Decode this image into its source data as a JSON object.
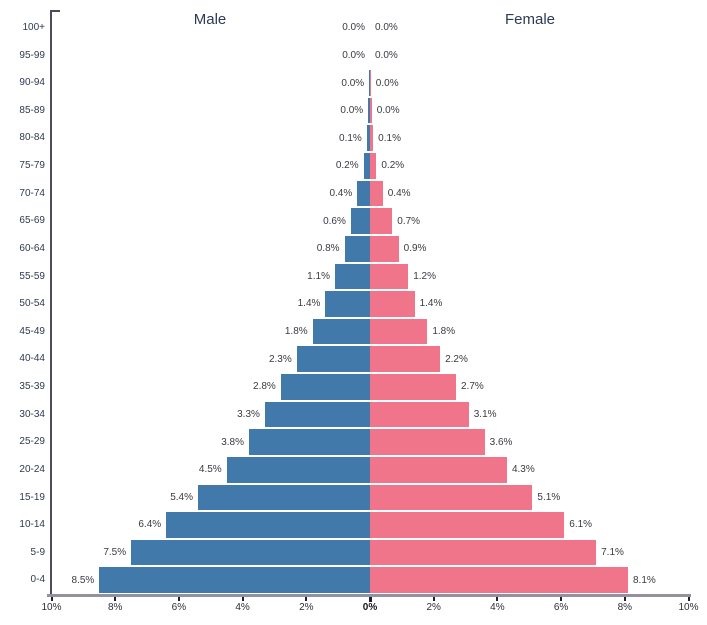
{
  "chart_data": {
    "type": "bar",
    "subtype": "population-pyramid",
    "orientation": "horizontal-mirrored",
    "grid": false,
    "categories": [
      "100+",
      "95-99",
      "90-94",
      "85-89",
      "80-84",
      "75-79",
      "70-74",
      "65-69",
      "60-64",
      "55-59",
      "50-54",
      "45-49",
      "40-44",
      "35-39",
      "30-34",
      "25-29",
      "20-24",
      "15-19",
      "10-14",
      "5-9",
      "0-4"
    ],
    "series": [
      {
        "name": "Male",
        "side": "left",
        "color": "#4179ab",
        "values": [
          0.0,
          0.0,
          0.0,
          0.0,
          0.1,
          0.2,
          0.4,
          0.6,
          0.8,
          1.1,
          1.4,
          1.8,
          2.3,
          2.8,
          3.3,
          3.8,
          4.5,
          5.4,
          6.4,
          7.5,
          8.5
        ],
        "labels": [
          "0.0%",
          "0.0%",
          "0.0%",
          "0.0%",
          "0.1%",
          "0.2%",
          "0.4%",
          "0.6%",
          "0.8%",
          "1.1%",
          "1.4%",
          "1.8%",
          "2.3%",
          "2.8%",
          "3.3%",
          "3.8%",
          "4.5%",
          "5.4%",
          "6.4%",
          "7.5%",
          "8.5%"
        ]
      },
      {
        "name": "Female",
        "side": "right",
        "color": "#f0758a",
        "values": [
          0.0,
          0.0,
          0.0,
          0.0,
          0.1,
          0.2,
          0.4,
          0.7,
          0.9,
          1.2,
          1.4,
          1.8,
          2.2,
          2.7,
          3.1,
          3.6,
          4.3,
          5.1,
          6.1,
          7.1,
          8.1
        ],
        "labels": [
          "0.0%",
          "0.0%",
          "0.0%",
          "0.0%",
          "0.1%",
          "0.2%",
          "0.4%",
          "0.7%",
          "0.9%",
          "1.2%",
          "1.4%",
          "1.8%",
          "2.2%",
          "2.7%",
          "3.1%",
          "3.6%",
          "4.3%",
          "5.1%",
          "6.1%",
          "7.1%",
          "8.1%"
        ]
      }
    ],
    "x_axis": {
      "range_percent": [
        -10,
        10
      ],
      "ticks": [
        {
          "label": "10%",
          "pct": -10
        },
        {
          "label": "8%",
          "pct": -8
        },
        {
          "label": "6%",
          "pct": -6
        },
        {
          "label": "4%",
          "pct": -4
        },
        {
          "label": "2%",
          "pct": -2
        },
        {
          "label": "0%",
          "pct": 0,
          "bold": true
        },
        {
          "label": "2%",
          "pct": 2
        },
        {
          "label": "4%",
          "pct": 4
        },
        {
          "label": "6%",
          "pct": 6
        },
        {
          "label": "8%",
          "pct": 8
        },
        {
          "label": "10%",
          "pct": 10
        }
      ]
    },
    "sliver_rows": [
      {
        "category": "90-94",
        "px": 0.8
      },
      {
        "category": "85-89",
        "px": 1.8
      }
    ],
    "colors": {
      "male": "#4179ab",
      "female": "#f0758a",
      "axis_band": "#9191a1",
      "axis_line": "#4b4b5c",
      "tick_mark": "#1f1f2b",
      "value_text": "#3a3a42",
      "age_text": "#2e3a4e",
      "title_text": "#2d3a55"
    }
  }
}
